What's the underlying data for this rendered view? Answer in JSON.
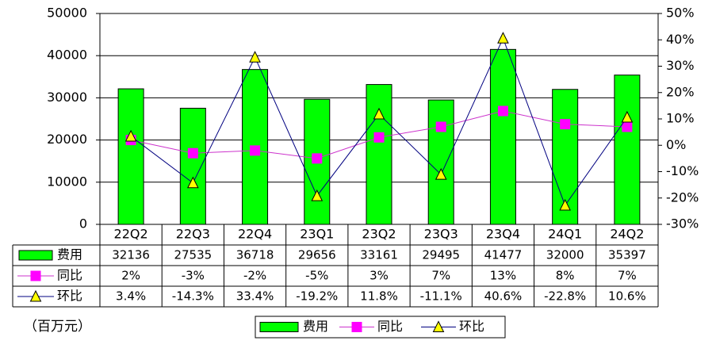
{
  "chart_data": {
    "type": "bar",
    "categories": [
      "22Q2",
      "22Q3",
      "22Q4",
      "23Q1",
      "23Q2",
      "23Q3",
      "23Q4",
      "24Q1",
      "24Q2"
    ],
    "left_axis": {
      "ylim": [
        0,
        50000
      ],
      "ticks": [
        "0",
        "10000",
        "20000",
        "30000",
        "40000",
        "50000"
      ]
    },
    "right_axis": {
      "ylim": [
        -30,
        50
      ],
      "ticks": [
        "-30%",
        "-20%",
        "-10%",
        "0%",
        "10%",
        "20%",
        "30%",
        "40%",
        "50%"
      ]
    },
    "series": [
      {
        "name": "费用",
        "type": "bar",
        "axis": "left",
        "color": "#00ff00",
        "marker": "rect",
        "values": [
          32136,
          27535,
          36718,
          29656,
          33161,
          29495,
          41477,
          32000,
          35397
        ],
        "labels": [
          "32136",
          "27535",
          "36718",
          "29656",
          "33161",
          "29495",
          "41477",
          "32000",
          "35397"
        ]
      },
      {
        "name": "同比",
        "type": "line",
        "axis": "right",
        "color": "#ff00ff",
        "line_color": "#cc33cc",
        "marker": "square",
        "values": [
          2,
          -3,
          -2,
          -5,
          3,
          7,
          13,
          8,
          7
        ],
        "labels": [
          "2%",
          "-3%",
          "-2%",
          "-5%",
          "3%",
          "7%",
          "13%",
          "8%",
          "7%"
        ]
      },
      {
        "name": "环比",
        "type": "line",
        "axis": "right",
        "color": "#ffff00",
        "line_color": "#000080",
        "marker": "triangle",
        "values": [
          3.4,
          -14.3,
          33.4,
          -19.2,
          11.8,
          -11.1,
          40.6,
          -22.8,
          10.6
        ],
        "labels": [
          "3.4%",
          "-14.3%",
          "33.4%",
          "-19.2%",
          "11.8%",
          "-11.1%",
          "40.6%",
          "-22.8%",
          "10.6%"
        ]
      }
    ],
    "unit_note": "（百万元）",
    "grid": true,
    "legend_position": "bottom-center"
  }
}
